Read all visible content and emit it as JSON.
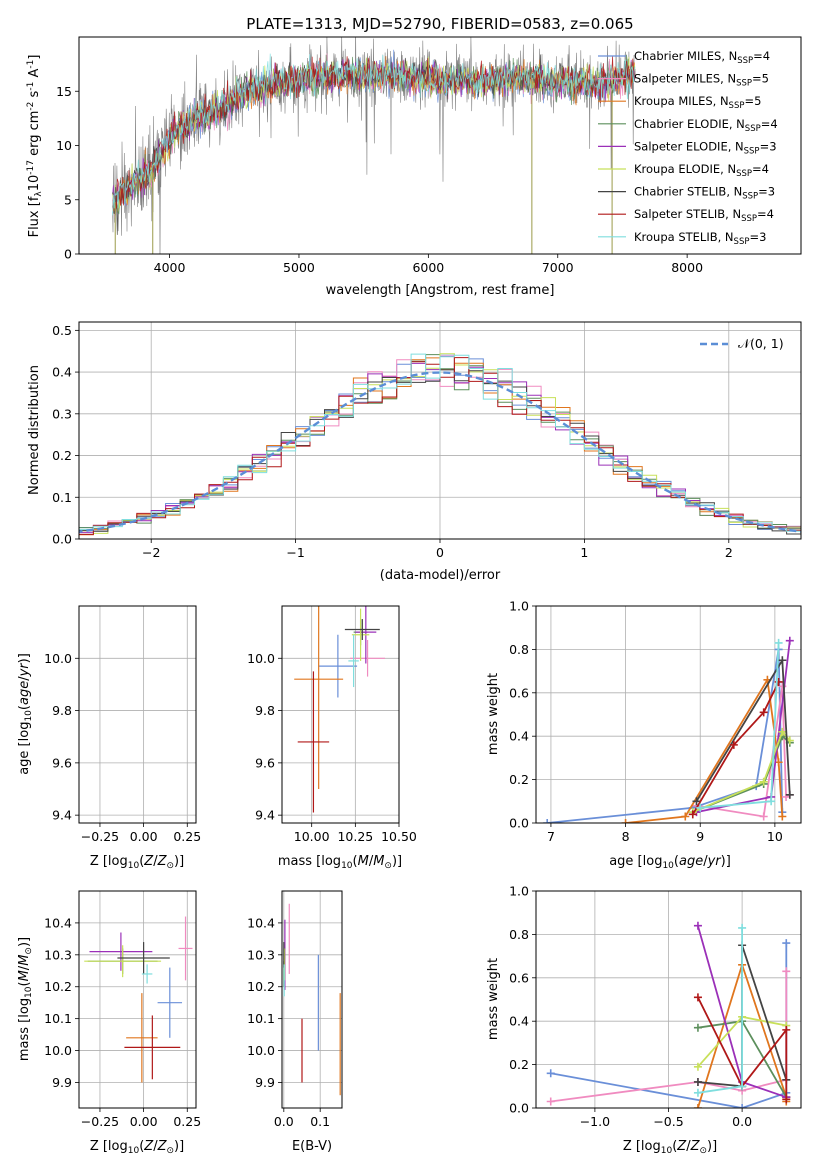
{
  "colors": {
    "Chabrier MILES": "#6a8fd8",
    "Salpeter MILES": "#f08bc0",
    "Kroupa MILES": "#e0761e",
    "Chabrier ELODIE": "#5c8f5c",
    "Salpeter ELODIE": "#9b30b8",
    "Kroupa ELODIE": "#c8e05a",
    "Chabrier STELIB": "#444444",
    "Salpeter STELIB": "#b01818",
    "Kroupa STELIB": "#7fdede",
    "normal": "#5b8ed6",
    "data": "#808080"
  },
  "legend_models": [
    {
      "prefix": "Chabrier MILES, N",
      "sub": "SSP",
      "suffix": "=4"
    },
    {
      "prefix": "Salpeter MILES, N",
      "sub": "SSP",
      "suffix": "=5"
    },
    {
      "prefix": "Kroupa MILES, N",
      "sub": "SSP",
      "suffix": "=5"
    },
    {
      "prefix": "Chabrier ELODIE, N",
      "sub": "SSP",
      "suffix": "=4"
    },
    {
      "prefix": "Salpeter ELODIE, N",
      "sub": "SSP",
      "suffix": "=3"
    },
    {
      "prefix": "Kroupa ELODIE, N",
      "sub": "SSP",
      "suffix": "=4"
    },
    {
      "prefix": "Chabrier STELIB, N",
      "sub": "SSP",
      "suffix": "=3"
    },
    {
      "prefix": "Salpeter STELIB, N",
      "sub": "SSP",
      "suffix": "=4"
    },
    {
      "prefix": "Kroupa STELIB, N",
      "sub": "SSP",
      "suffix": "=3"
    }
  ],
  "chart_data": [
    {
      "type": "line",
      "title": "PLATE=1313, MJD=52790, FIBERID=0583, z=0.065",
      "xlabel": "wavelength [Angstrom, rest frame]",
      "ylabel": {
        "main": "Flux [f",
        "sub1": "λ",
        "mid": "10",
        "sup1": "-17",
        "rest": " erg cm",
        "sup2": "-2",
        "mid2": " s",
        "sup3": "-1",
        "end": " A",
        "sup4": "-1",
        "close": "]"
      },
      "xlim": [
        3300,
        8880
      ],
      "ylim": [
        0,
        20
      ],
      "xticks": [
        "4000",
        "5000",
        "6000",
        "7000",
        "8000"
      ],
      "yticks": [
        "0",
        "5",
        "10",
        "15"
      ],
      "continuum": {
        "x": [
          3560,
          3700,
          3850,
          3950,
          4050,
          4200,
          4400,
          4600,
          4900,
          5200,
          5500,
          5800,
          6100,
          6400,
          6700,
          7000,
          7300,
          7600,
          7900,
          8200,
          8500,
          8800
        ],
        "y": [
          4.5,
          6.5,
          7.5,
          9.5,
          11.5,
          12.5,
          13.5,
          15.0,
          16.0,
          16.3,
          16.5,
          16.3,
          16.0,
          15.9,
          16.2,
          16.0,
          15.5,
          16.7,
          16.5,
          16.3,
          16.4,
          16.3
        ]
      },
      "grid": false,
      "legend_position": "right"
    },
    {
      "type": "histogram",
      "xlabel": "(data-model)/error",
      "ylabel": "Normed distribution",
      "xlim": [
        -2.5,
        2.5
      ],
      "ylim": [
        0,
        0.52
      ],
      "xticks": [
        "−2",
        "−1",
        "0",
        "1",
        "2"
      ],
      "yticks": [
        "0.0",
        "0.1",
        "0.2",
        "0.3",
        "0.4",
        "0.5"
      ],
      "legend": "𝒩(0, 1)",
      "grid": true
    },
    {
      "type": "scatter",
      "xlabel": "Z [log10(Z/Z⊙)]",
      "ylabel": "age  [log10(age/yr)]",
      "xlim": [
        -0.37,
        0.3
      ],
      "ylim": [
        9.37,
        10.2
      ],
      "xticks": [
        "−0.25",
        "0.00",
        "0.25"
      ],
      "yticks": [
        "9.4",
        "9.6",
        "9.8",
        "10.0"
      ],
      "points": [
        {
          "model": "Chabrier MILES",
          "x": 0.15,
          "y": 9.97,
          "xerr": 0.07,
          "yerr": 0.12
        },
        {
          "model": "Salpeter MILES",
          "x": 0.24,
          "y": 10.0,
          "xerr": 0.04,
          "yerr": 0.07
        },
        {
          "model": "Kroupa MILES",
          "x": -0.01,
          "y": 9.92,
          "xerr": 0.09,
          "yerr": 0.42
        },
        {
          "model": "Chabrier ELODIE",
          "x": -0.12,
          "y": 10.1,
          "xerr": 0.2,
          "yerr": 0.05
        },
        {
          "model": "Salpeter ELODIE",
          "x": -0.13,
          "y": 10.1,
          "xerr": 0.18,
          "yerr": 0.12
        },
        {
          "model": "Kroupa ELODIE",
          "x": -0.12,
          "y": 10.09,
          "xerr": 0.22,
          "yerr": 0.1
        },
        {
          "model": "Chabrier STELIB",
          "x": 0.0,
          "y": 10.11,
          "xerr": 0.15,
          "yerr": 0.04
        },
        {
          "model": "Salpeter STELIB",
          "x": 0.05,
          "y": 9.68,
          "xerr": 0.16,
          "yerr": 0.27
        },
        {
          "model": "Kroupa STELIB",
          "x": 0.16,
          "y": 9.99,
          "xerr": 0.03,
          "yerr": 0.1
        }
      ]
    },
    {
      "type": "scatter",
      "xlabel": "mass [log10(M/M⊙)]",
      "xlim": [
        9.83,
        10.5
      ],
      "ylim": [
        9.37,
        10.2
      ],
      "xticks": [
        "10.00",
        "10.25",
        "10.50"
      ],
      "yticks": [
        "9.4",
        "9.6",
        "9.8",
        "10.0"
      ],
      "points": [
        {
          "model": "Chabrier MILES",
          "x": 10.15,
          "y": 9.97,
          "xerr": 0.11,
          "yerr": 0.12
        },
        {
          "model": "Salpeter MILES",
          "x": 10.32,
          "y": 10.0,
          "xerr": 0.1,
          "yerr": 0.07
        },
        {
          "model": "Kroupa MILES",
          "x": 10.04,
          "y": 9.92,
          "xerr": 0.14,
          "yerr": 0.42
        },
        {
          "model": "Chabrier ELODIE",
          "x": 10.28,
          "y": 10.1,
          "xerr": 0.04,
          "yerr": 0.05
        },
        {
          "model": "Salpeter ELODIE",
          "x": 10.31,
          "y": 10.1,
          "xerr": 0.06,
          "yerr": 0.12
        },
        {
          "model": "Kroupa ELODIE",
          "x": 10.28,
          "y": 10.09,
          "xerr": 0.05,
          "yerr": 0.1
        },
        {
          "model": "Chabrier STELIB",
          "x": 10.29,
          "y": 10.11,
          "xerr": 0.1,
          "yerr": 0.04
        },
        {
          "model": "Salpeter STELIB",
          "x": 10.01,
          "y": 9.68,
          "xerr": 0.09,
          "yerr": 0.27
        },
        {
          "model": "Kroupa STELIB",
          "x": 10.24,
          "y": 9.99,
          "xerr": 0.03,
          "yerr": 0.1
        }
      ]
    },
    {
      "type": "line",
      "xlabel": "age  [log10(age/yr)]",
      "ylabel": "mass weight",
      "xlim": [
        6.8,
        10.35
      ],
      "ylim": [
        0,
        1
      ],
      "xticks": [
        "7",
        "8",
        "9",
        "10"
      ],
      "yticks": [
        "0.0",
        "0.2",
        "0.4",
        "0.6",
        "0.8",
        "1.0"
      ],
      "series": [
        {
          "model": "Chabrier MILES",
          "x": [
            6.95,
            8.9,
            9.75,
            10.05,
            10.1
          ],
          "y": [
            0.0,
            0.07,
            0.17,
            0.8,
            0.05
          ]
        },
        {
          "model": "Salpeter MILES",
          "x": [
            8.95,
            9.85,
            10.1,
            10.15,
            10.2
          ],
          "y": [
            0.08,
            0.03,
            0.63,
            0.12,
            0.13
          ]
        },
        {
          "model": "Kroupa MILES",
          "x": [
            8.0,
            8.8,
            9.9,
            10.05,
            10.1
          ],
          "y": [
            0.0,
            0.03,
            0.66,
            0.28,
            0.03
          ]
        },
        {
          "model": "Chabrier ELODIE",
          "x": [
            8.9,
            9.85,
            10.1,
            10.2
          ],
          "y": [
            0.05,
            0.18,
            0.4,
            0.37
          ]
        },
        {
          "model": "Salpeter ELODIE",
          "x": [
            8.95,
            9.95,
            10.2
          ],
          "y": [
            0.05,
            0.12,
            0.84
          ]
        },
        {
          "model": "Kroupa ELODIE",
          "x": [
            8.9,
            9.85,
            10.1,
            10.2
          ],
          "y": [
            0.05,
            0.19,
            0.42,
            0.38
          ]
        },
        {
          "model": "Chabrier STELIB",
          "x": [
            8.95,
            10.1,
            10.2
          ],
          "y": [
            0.1,
            0.75,
            0.13
          ]
        },
        {
          "model": "Salpeter STELIB",
          "x": [
            8.9,
            9.45,
            9.85,
            10.05
          ],
          "y": [
            0.04,
            0.36,
            0.51,
            0.65
          ]
        },
        {
          "model": "Kroupa STELIB",
          "x": [
            9.0,
            9.95,
            10.05
          ],
          "y": [
            0.07,
            0.1,
            0.83
          ]
        }
      ]
    },
    {
      "type": "scatter",
      "xlabel": "Z [log10(Z/Z⊙)]",
      "ylabel": "mass [log10(M/M⊙)]",
      "xlim": [
        -0.37,
        0.3
      ],
      "ylim": [
        9.82,
        10.5
      ],
      "xticks": [
        "−0.25",
        "0.00",
        "0.25"
      ],
      "yticks": [
        "9.9",
        "10.0",
        "10.1",
        "10.2",
        "10.3",
        "10.4"
      ],
      "points": [
        {
          "model": "Chabrier MILES",
          "x": 0.15,
          "y": 10.15,
          "xerr": 0.07,
          "yerr": 0.11
        },
        {
          "model": "Salpeter MILES",
          "x": 0.24,
          "y": 10.32,
          "xerr": 0.04,
          "yerr": 0.1
        },
        {
          "model": "Kroupa MILES",
          "x": -0.01,
          "y": 10.04,
          "xerr": 0.09,
          "yerr": 0.14
        },
        {
          "model": "Chabrier ELODIE",
          "x": -0.12,
          "y": 10.28,
          "xerr": 0.2,
          "yerr": 0.04
        },
        {
          "model": "Salpeter ELODIE",
          "x": -0.13,
          "y": 10.31,
          "xerr": 0.18,
          "yerr": 0.06
        },
        {
          "model": "Kroupa ELODIE",
          "x": -0.12,
          "y": 10.28,
          "xerr": 0.22,
          "yerr": 0.05
        },
        {
          "model": "Chabrier STELIB",
          "x": 0.0,
          "y": 10.29,
          "xerr": 0.15,
          "yerr": 0.05
        },
        {
          "model": "Salpeter STELIB",
          "x": 0.05,
          "y": 10.01,
          "xerr": 0.16,
          "yerr": 0.1
        },
        {
          "model": "Kroupa STELIB",
          "x": 0.02,
          "y": 10.24,
          "xerr": 0.03,
          "yerr": 0.03
        }
      ]
    },
    {
      "type": "scatter",
      "xlabel": "E(B-V)",
      "xlim": [
        -0.005,
        0.16
      ],
      "ylim": [
        9.82,
        10.5
      ],
      "xticks": [
        "0.0",
        "0.1"
      ],
      "yticks": [
        "9.9",
        "10.0",
        "10.1",
        "10.2",
        "10.3",
        "10.4"
      ],
      "points": [
        {
          "model": "Chabrier MILES",
          "x": 0.095,
          "y": 10.15,
          "yerr": 0.15
        },
        {
          "model": "Salpeter MILES",
          "x": 0.015,
          "y": 10.35,
          "yerr": 0.11
        },
        {
          "model": "Kroupa MILES",
          "x": 0.155,
          "y": 10.02,
          "yerr": 0.16
        },
        {
          "model": "Chabrier ELODIE",
          "x": 0.0,
          "y": 10.24,
          "yerr": 0.04
        },
        {
          "model": "Salpeter ELODIE",
          "x": 0.003,
          "y": 10.3,
          "yerr": 0.11
        },
        {
          "model": "Kroupa ELODIE",
          "x": 0.002,
          "y": 10.27,
          "yerr": 0.05
        },
        {
          "model": "Chabrier STELIB",
          "x": 0.0,
          "y": 10.3,
          "yerr": 0.04
        },
        {
          "model": "Salpeter STELIB",
          "x": 0.05,
          "y": 10.0,
          "yerr": 0.1
        },
        {
          "model": "Kroupa STELIB",
          "x": 0.001,
          "y": 10.22,
          "yerr": 0.05
        }
      ]
    },
    {
      "type": "line",
      "xlabel": "Z [log10(Z/Z⊙)]",
      "ylabel": "mass weight",
      "xlim": [
        -1.4,
        0.4
      ],
      "ylim": [
        0,
        1
      ],
      "xticks": [
        "−1.0",
        "−0.5",
        "0.0"
      ],
      "yticks": [
        "0.0",
        "0.2",
        "0.4",
        "0.6",
        "0.8",
        "1.0"
      ],
      "series": [
        {
          "model": "Chabrier MILES",
          "x": [
            -1.3,
            0.0,
            0.3,
            0.3
          ],
          "y": [
            0.16,
            0.0,
            0.07,
            0.76
          ]
        },
        {
          "model": "Salpeter MILES",
          "x": [
            -1.3,
            -0.3,
            0.0,
            0.3,
            0.3
          ],
          "y": [
            0.03,
            0.12,
            0.08,
            0.13,
            0.63
          ]
        },
        {
          "model": "Kroupa MILES",
          "x": [
            -0.3,
            0.0,
            0.3,
            0.3
          ],
          "y": [
            0.0,
            0.66,
            0.05,
            0.03
          ]
        },
        {
          "model": "Chabrier ELODIE",
          "x": [
            -0.3,
            0.0,
            0.3
          ],
          "y": [
            0.37,
            0.4,
            0.05
          ]
        },
        {
          "model": "Salpeter ELODIE",
          "x": [
            -0.3,
            0.0,
            0.3
          ],
          "y": [
            0.84,
            0.12,
            0.05
          ]
        },
        {
          "model": "Kroupa ELODIE",
          "x": [
            -0.3,
            0.0,
            0.3
          ],
          "y": [
            0.19,
            0.42,
            0.38
          ]
        },
        {
          "model": "Chabrier STELIB",
          "x": [
            -0.3,
            0.0,
            0.0,
            0.3
          ],
          "y": [
            0.12,
            0.1,
            0.75,
            0.13
          ]
        },
        {
          "model": "Salpeter STELIB",
          "x": [
            -0.3,
            0.0,
            0.3,
            0.3
          ],
          "y": [
            0.51,
            0.1,
            0.36,
            0.04
          ]
        },
        {
          "model": "Kroupa STELIB",
          "x": [
            -0.3,
            0.0,
            0.0
          ],
          "y": [
            0.07,
            0.1,
            0.83
          ]
        }
      ]
    }
  ]
}
